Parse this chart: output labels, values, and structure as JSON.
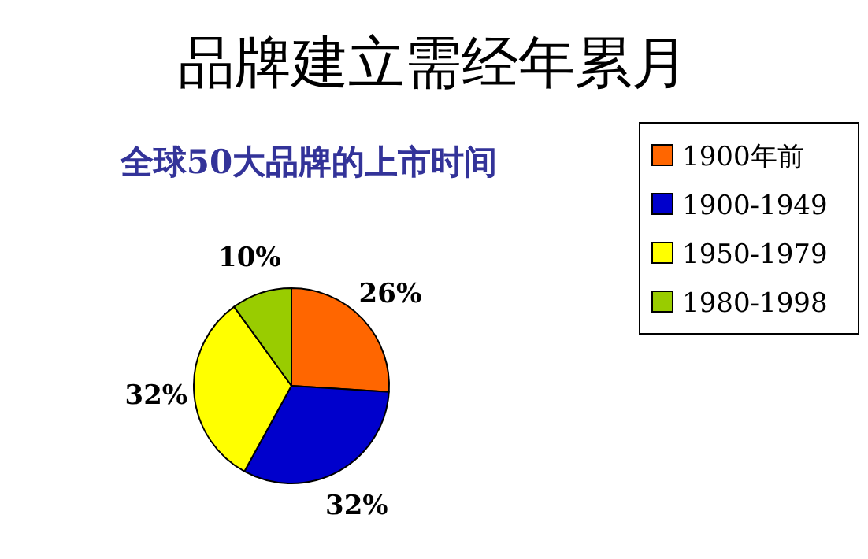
{
  "chart_data": {
    "type": "pie",
    "title": "品牌建立需经年累月",
    "subtitle": "全球50大品牌的上市时间",
    "categories": [
      "1900年前",
      "1900-1949",
      "1950-1979",
      "1980-1998"
    ],
    "values": [
      26,
      32,
      32,
      10
    ],
    "colors": [
      "#ff6600",
      "#0000cc",
      "#ffff00",
      "#99cc00"
    ],
    "value_labels": [
      "26%",
      "32%",
      "32%",
      "10%"
    ],
    "legend": "top right"
  }
}
